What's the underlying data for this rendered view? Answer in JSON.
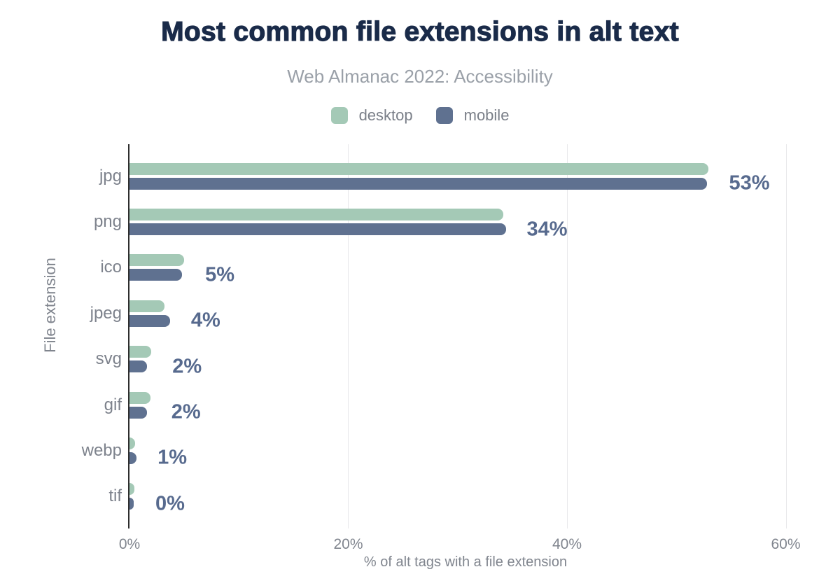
{
  "colors": {
    "title": "#1a2b49",
    "subtitle": "#9aa0a8",
    "axis_text": "#80858e",
    "category_text": "#7d828c",
    "legend_text": "#7a7f88",
    "value_label": "#576a8e",
    "gridline": "#e8e8eb",
    "axis_line": "#2e2e2e",
    "background": "#ffffff"
  },
  "chart_data": {
    "type": "bar",
    "orientation": "horizontal",
    "title": "Most common file extensions in alt text",
    "subtitle": "Web Almanac 2022: Accessibility",
    "xlabel": "% of alt tags with a file extension",
    "ylabel": "File extension",
    "categories": [
      "jpg",
      "png",
      "ico",
      "jpeg",
      "svg",
      "gif",
      "webp",
      "tif"
    ],
    "series": [
      {
        "name": "desktop",
        "color": "#a4c9b6",
        "values": [
          52.9,
          34.2,
          5.0,
          3.2,
          2.0,
          1.9,
          0.5,
          0.45
        ]
      },
      {
        "name": "mobile",
        "color": "#5f7190",
        "values": [
          52.8,
          34.4,
          4.8,
          3.7,
          1.6,
          1.6,
          0.65,
          0.4
        ]
      }
    ],
    "value_labels": [
      "53%",
      "34%",
      "5%",
      "4%",
      "2%",
      "2%",
      "1%",
      "0%"
    ],
    "x_ticks": [
      {
        "value": 0,
        "label": "0%"
      },
      {
        "value": 20,
        "label": "20%"
      },
      {
        "value": 40,
        "label": "40%"
      },
      {
        "value": 60,
        "label": "60%"
      }
    ],
    "xlim": [
      0,
      61.44
    ],
    "grid": "vertical",
    "legend_position": "top"
  }
}
